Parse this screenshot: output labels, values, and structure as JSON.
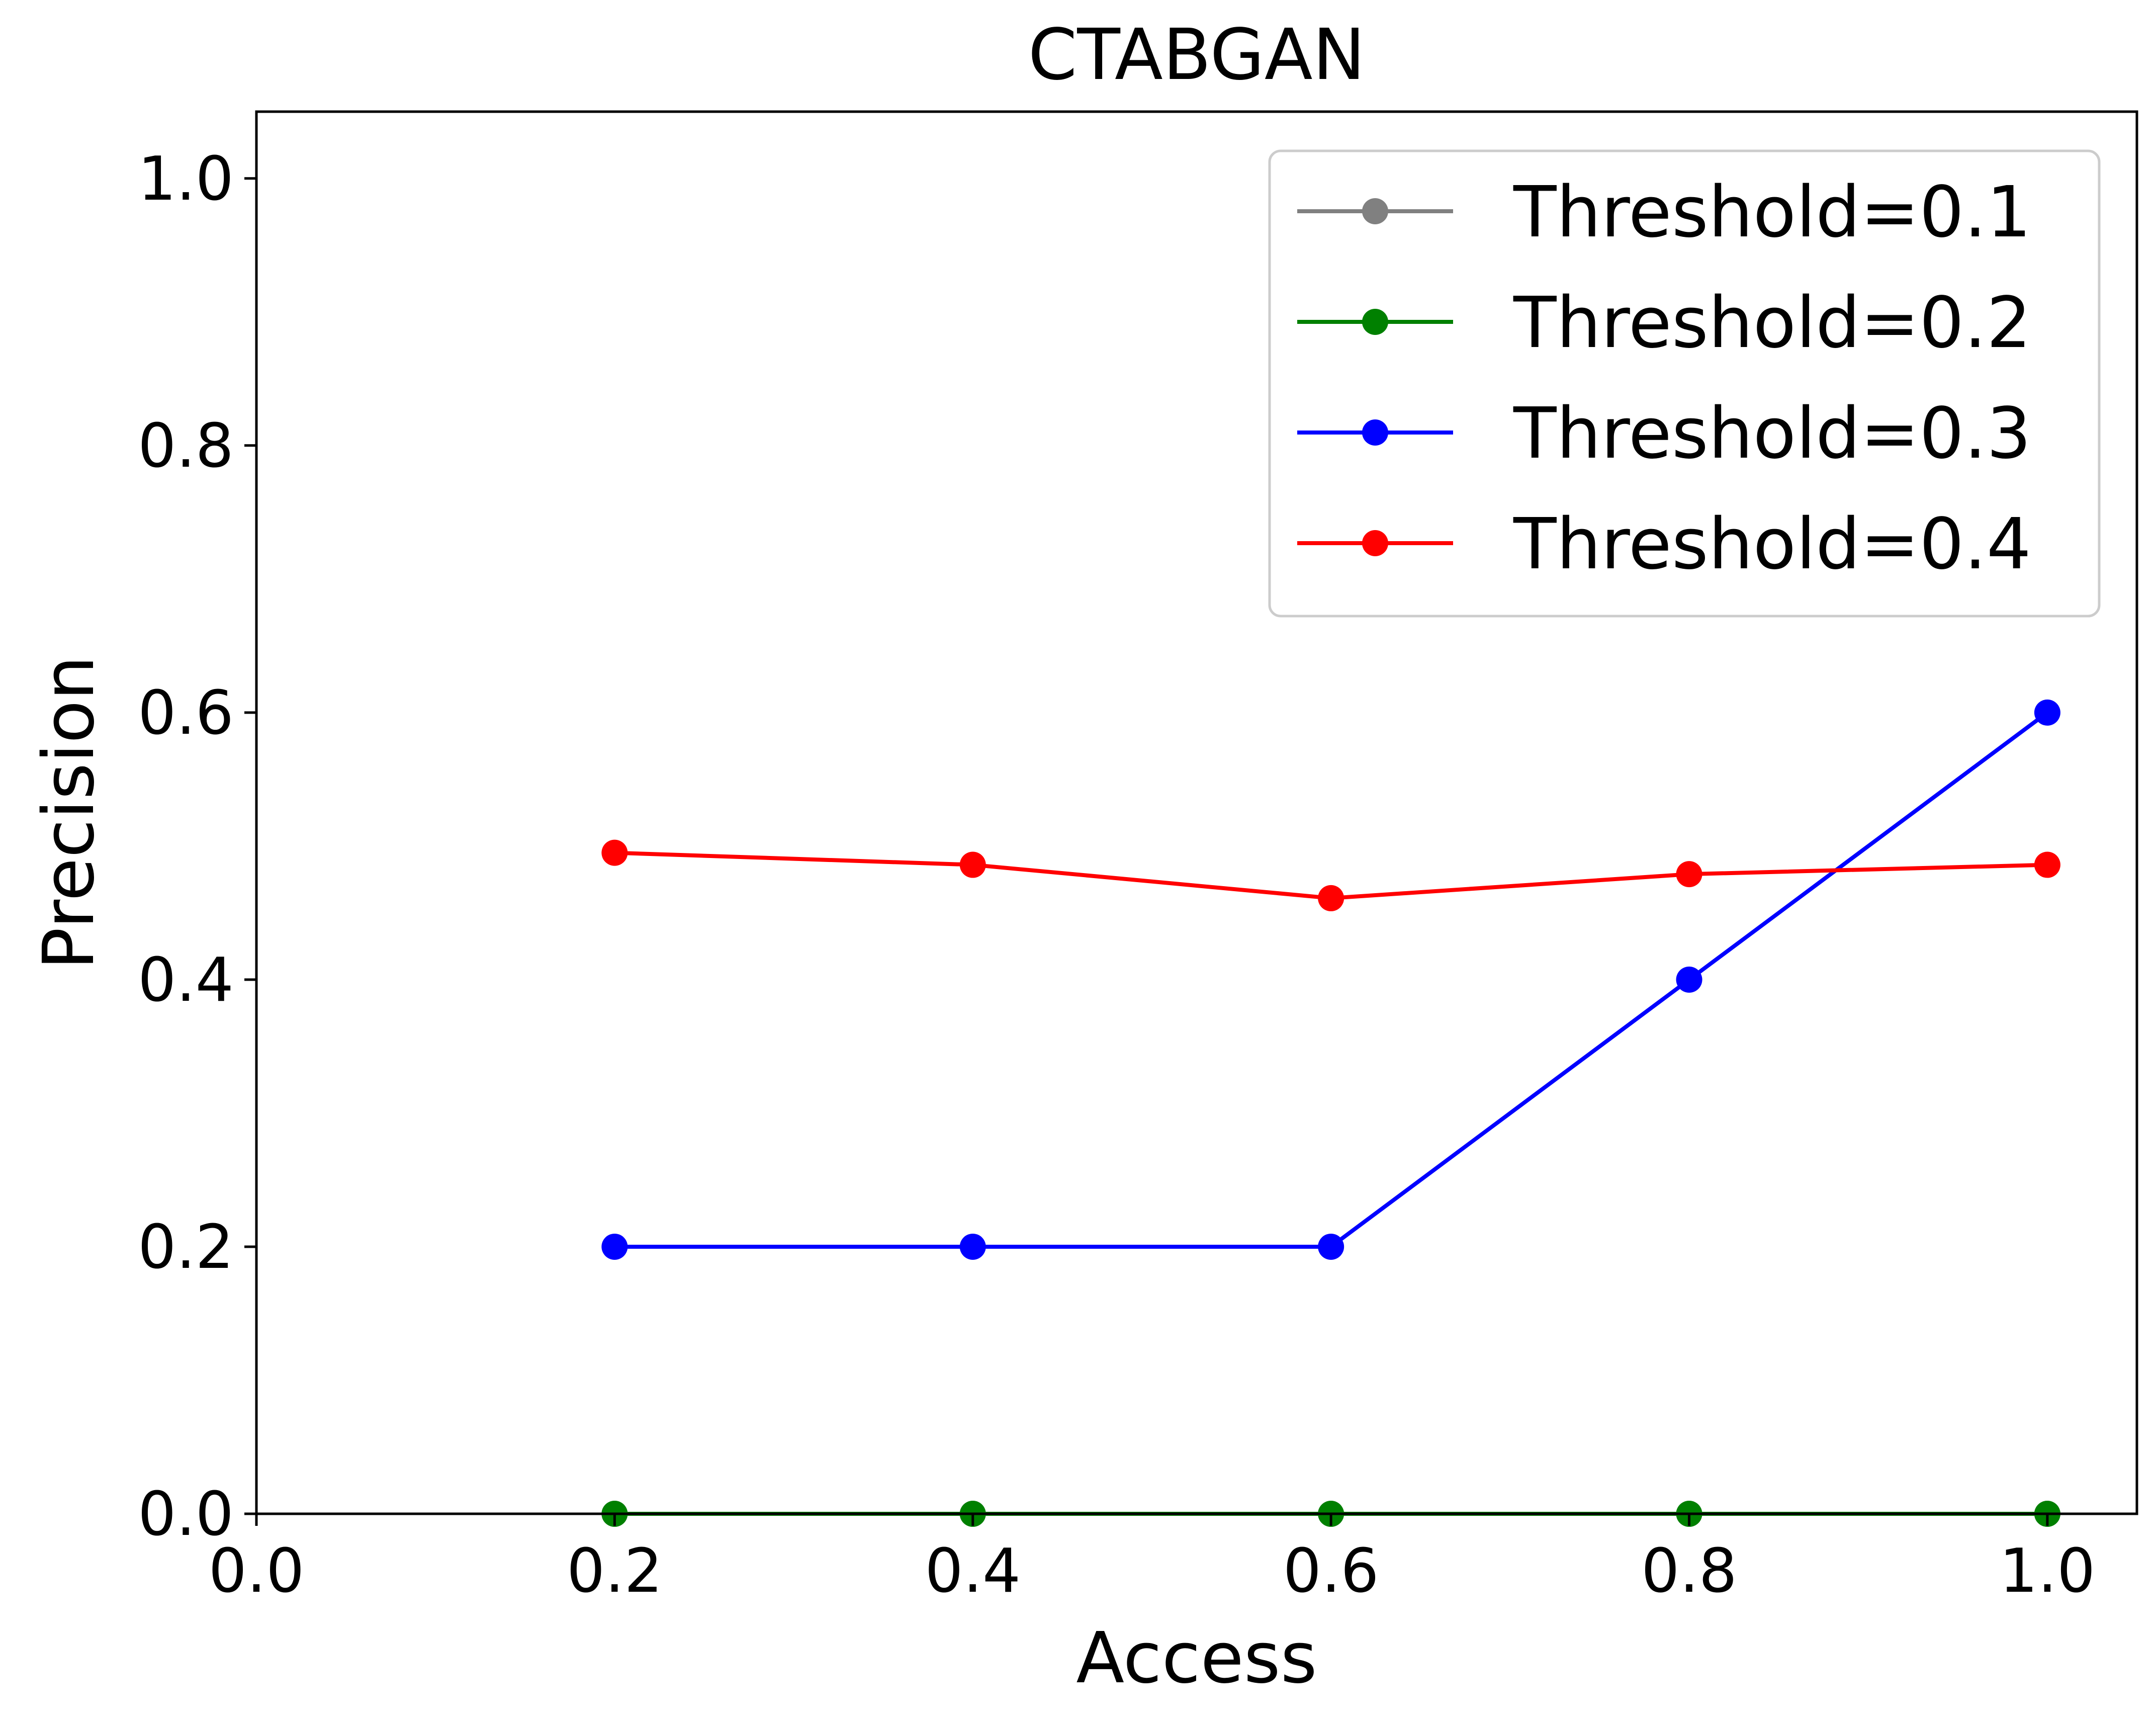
{
  "chart_data": {
    "type": "line",
    "title": "CTABGAN",
    "xlabel": "Access",
    "ylabel": "Precision",
    "xlim": [
      0.0,
      1.05
    ],
    "ylim": [
      0.0,
      1.05
    ],
    "xticks": [
      0.0,
      0.2,
      0.4,
      0.6,
      0.8,
      1.0
    ],
    "xtick_labels": [
      "0.0",
      "0.2",
      "0.4",
      "0.6",
      "0.8",
      "1.0"
    ],
    "yticks": [
      0.0,
      0.2,
      0.4,
      0.6,
      0.8,
      1.0
    ],
    "ytick_labels": [
      "0.0",
      "0.2",
      "0.4",
      "0.6",
      "0.8",
      "1.0"
    ],
    "grid": false,
    "legend_position": "top-right",
    "x": [
      0.2,
      0.4,
      0.6,
      0.8,
      1.0
    ],
    "series": [
      {
        "name": "Threshold=0.1",
        "color": "#808080",
        "values": [
          0.0,
          0.0,
          0.0,
          0.0,
          0.0
        ]
      },
      {
        "name": "Threshold=0.2",
        "color": "#008000",
        "values": [
          0.0,
          0.0,
          0.0,
          0.0,
          0.0
        ]
      },
      {
        "name": "Threshold=0.3",
        "color": "#0000ff",
        "values": [
          0.2,
          0.2,
          0.2,
          0.4,
          0.6
        ]
      },
      {
        "name": "Threshold=0.4",
        "color": "#ff0000",
        "values": [
          0.495,
          0.486,
          0.461,
          0.479,
          0.486
        ]
      }
    ]
  }
}
